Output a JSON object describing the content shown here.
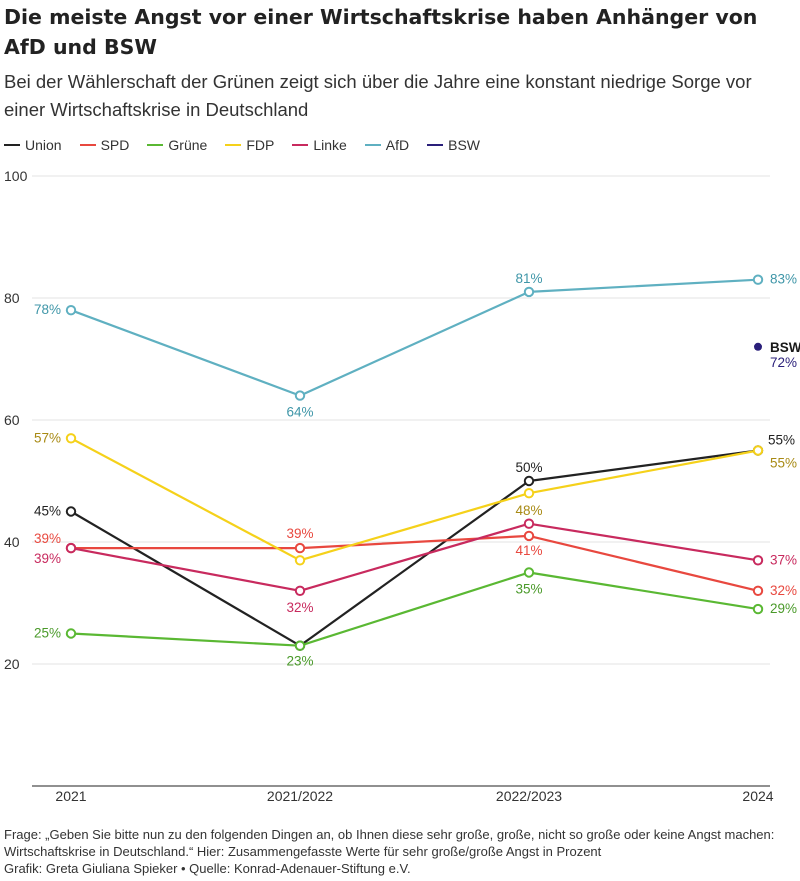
{
  "title": "Die meiste Angst vor einer Wirtschaftskrise haben Anhänger von AfD und BSW",
  "subtitle": "Bei der Wählerschaft der Grünen zeigt sich über die Jahre eine konstant niedrige Sorge vor einer Wirtschaftskrise in Deutschland",
  "footer": {
    "note": "Frage: „Geben Sie bitte nun zu den folgenden Dingen an, ob Ihnen diese sehr große, große, nicht so große oder keine Angst machen: Wirtschaftskrise in Deutschland.“ Hier: Zusammengefasste Werte für sehr große/große Angst in Prozent",
    "credit": "Grafik: Greta Giuliana Spieker • Quelle: Konrad-Adenauer-Stiftung e.V."
  },
  "chart_data": {
    "type": "line",
    "categories": [
      "2021",
      "2021/2022",
      "2022/2023",
      "2024"
    ],
    "ylim": [
      0,
      100
    ],
    "yticks": [
      20,
      40,
      60,
      80,
      100
    ],
    "grid": true,
    "legend_position": "top-left",
    "series": [
      {
        "name": "Union",
        "color": "#222222",
        "label_color": "#222222",
        "values": [
          45,
          23,
          50,
          55
        ],
        "labels": [
          "45%",
          "23%",
          "50%",
          "55%"
        ]
      },
      {
        "name": "SPD",
        "color": "#e8483f",
        "label_color": "#e8483f",
        "values": [
          39,
          39,
          41,
          32
        ],
        "labels": [
          "39%",
          "39%",
          "41%",
          "32%"
        ]
      },
      {
        "name": "Grüne",
        "color": "#5ab833",
        "label_color": "#4a9a2a",
        "values": [
          25,
          23,
          35,
          29
        ],
        "labels": [
          "25%",
          "23%",
          "35%",
          "29%"
        ]
      },
      {
        "name": "FDP",
        "color": "#f5d11a",
        "label_color": "#a88a14",
        "values": [
          57,
          37,
          48,
          55
        ],
        "labels": [
          "57%",
          "",
          "48%",
          "55%"
        ]
      },
      {
        "name": "Linke",
        "color": "#c82a5e",
        "label_color": "#c82a5e",
        "values": [
          39,
          32,
          43,
          37
        ],
        "labels": [
          "39%",
          "32%",
          "",
          "37%"
        ]
      },
      {
        "name": "AfD",
        "color": "#5fb0c1",
        "label_color": "#3f96a8",
        "values": [
          78,
          64,
          81,
          83
        ],
        "labels": [
          "78%",
          "64%",
          "81%",
          "83%"
        ]
      },
      {
        "name": "BSW",
        "color": "#2a1f7a",
        "label_color": "#2a1f7a",
        "values": [
          null,
          null,
          null,
          72
        ],
        "labels": [
          "",
          "",
          "",
          "72%"
        ],
        "tag": "BSW"
      }
    ]
  }
}
